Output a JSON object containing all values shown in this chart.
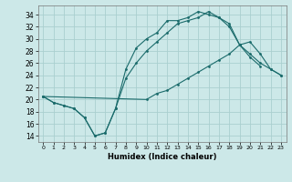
{
  "xlabel": "Humidex (Indice chaleur)",
  "bg_color": "#cce8e8",
  "grid_color": "#aacfcf",
  "line_color": "#1a6b6b",
  "xlim": [
    -0.5,
    23.5
  ],
  "ylim": [
    13.0,
    35.5
  ],
  "xticks": [
    0,
    1,
    2,
    3,
    4,
    5,
    6,
    7,
    8,
    9,
    10,
    11,
    12,
    13,
    14,
    15,
    16,
    17,
    18,
    19,
    20,
    21,
    22,
    23
  ],
  "yticks": [
    14,
    16,
    18,
    20,
    22,
    24,
    26,
    28,
    30,
    32,
    34
  ],
  "line1_x": [
    0,
    1,
    2,
    3,
    4,
    5,
    6,
    7,
    8,
    9,
    10,
    11,
    12,
    13,
    14,
    15,
    16,
    17,
    18,
    19,
    20,
    21
  ],
  "line1_y": [
    20.5,
    19.5,
    19.0,
    18.5,
    17.0,
    14.0,
    14.5,
    18.5,
    25.0,
    28.5,
    30.0,
    31.0,
    33.0,
    33.0,
    33.5,
    34.5,
    34.0,
    33.5,
    32.5,
    29.0,
    27.0,
    25.5
  ],
  "line2_x": [
    0,
    1,
    2,
    3,
    4,
    5,
    6,
    7,
    8,
    9,
    10,
    11,
    12,
    13,
    14,
    15,
    16,
    17,
    18,
    19,
    20,
    21,
    22,
    23
  ],
  "line2_y": [
    20.5,
    19.5,
    19.0,
    18.5,
    17.0,
    14.0,
    14.5,
    18.5,
    23.5,
    26.0,
    28.0,
    29.5,
    31.0,
    32.5,
    33.0,
    33.5,
    34.5,
    33.5,
    32.0,
    29.0,
    27.5,
    26.0,
    25.0,
    24.0
  ],
  "line3_x": [
    0,
    10,
    11,
    12,
    13,
    14,
    15,
    16,
    17,
    18,
    19,
    20,
    21,
    22,
    23
  ],
  "line3_y": [
    20.5,
    20.0,
    21.0,
    21.5,
    22.5,
    23.5,
    24.5,
    25.5,
    26.5,
    27.5,
    29.0,
    29.5,
    27.5,
    25.0,
    24.0
  ]
}
